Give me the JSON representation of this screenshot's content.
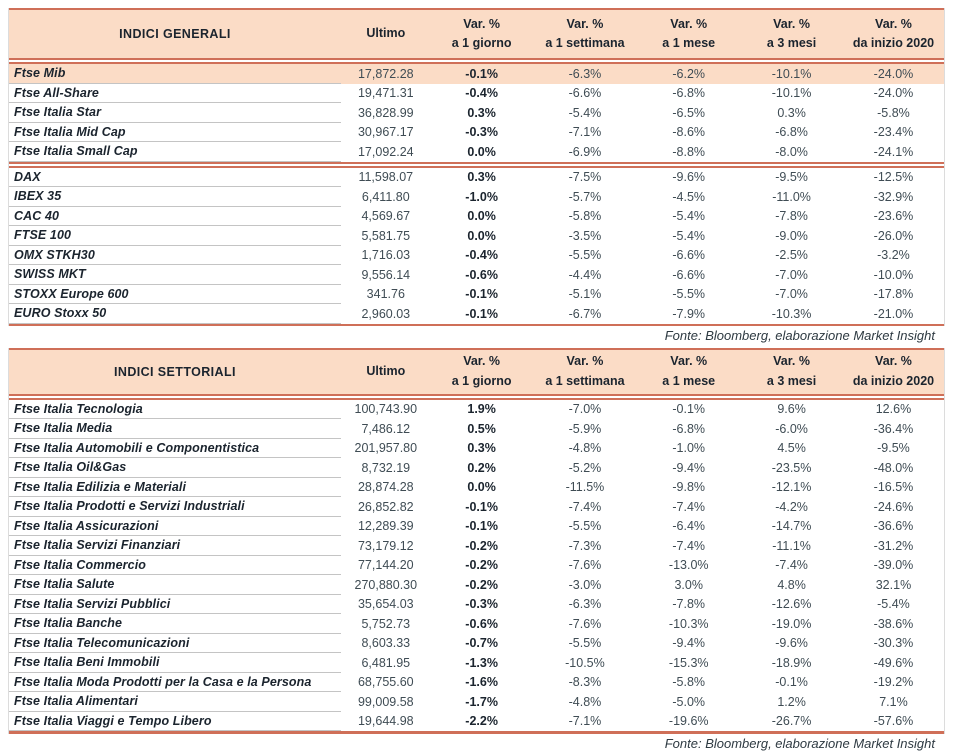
{
  "colors": {
    "accent_line": "#cf6f58",
    "header_bg": "#fbdcc6",
    "highlight_row_bg": "#fbdcc6",
    "row_divider": "#c4c4c4",
    "text_dark": "#1b242e",
    "text_number": "#3f4c54"
  },
  "column_headers": {
    "ultimo": "Ultimo",
    "var_cols": [
      [
        "Var. %",
        "a 1 giorno"
      ],
      [
        "Var. %",
        "a 1 settimana"
      ],
      [
        "Var. %",
        "a 1 mese"
      ],
      [
        "Var. %",
        "a 3 mesi"
      ],
      [
        "Var. %",
        "da inizio 2020"
      ]
    ]
  },
  "source_note": "Fonte: Bloomberg, elaborazione Market Insight",
  "tables": [
    {
      "title": "INDICI GENERALI",
      "groups": [
        [
          {
            "name": "Ftse Mib",
            "ultimo": "17,872.28",
            "vars": [
              "-0.1%",
              "-6.3%",
              "-6.2%",
              "-10.1%",
              "-24.0%"
            ],
            "highlight": true
          },
          {
            "name": "Ftse All-Share",
            "ultimo": "19,471.31",
            "vars": [
              "-0.4%",
              "-6.6%",
              "-6.8%",
              "-10.1%",
              "-24.0%"
            ]
          },
          {
            "name": "Ftse Italia Star",
            "ultimo": "36,828.99",
            "vars": [
              "0.3%",
              "-5.4%",
              "-6.5%",
              "0.3%",
              "-5.8%"
            ]
          },
          {
            "name": "Ftse Italia Mid Cap",
            "ultimo": "30,967.17",
            "vars": [
              "-0.3%",
              "-7.1%",
              "-8.6%",
              "-6.8%",
              "-23.4%"
            ]
          },
          {
            "name": "Ftse Italia Small Cap",
            "ultimo": "17,092.24",
            "vars": [
              "0.0%",
              "-6.9%",
              "-8.8%",
              "-8.0%",
              "-24.1%"
            ]
          }
        ],
        [
          {
            "name": "DAX",
            "ultimo": "11,598.07",
            "vars": [
              "0.3%",
              "-7.5%",
              "-9.6%",
              "-9.5%",
              "-12.5%"
            ]
          },
          {
            "name": "IBEX 35",
            "ultimo": "6,411.80",
            "vars": [
              "-1.0%",
              "-5.7%",
              "-4.5%",
              "-11.0%",
              "-32.9%"
            ]
          },
          {
            "name": "CAC 40",
            "ultimo": "4,569.67",
            "vars": [
              "0.0%",
              "-5.8%",
              "-5.4%",
              "-7.8%",
              "-23.6%"
            ]
          },
          {
            "name": "FTSE 100",
            "ultimo": "5,581.75",
            "vars": [
              "0.0%",
              "-3.5%",
              "-5.4%",
              "-9.0%",
              "-26.0%"
            ]
          },
          {
            "name": "OMX STKH30",
            "ultimo": "1,716.03",
            "vars": [
              "-0.4%",
              "-5.5%",
              "-6.6%",
              "-2.5%",
              "-3.2%"
            ]
          },
          {
            "name": "SWISS MKT",
            "ultimo": "9,556.14",
            "vars": [
              "-0.6%",
              "-4.4%",
              "-6.6%",
              "-7.0%",
              "-10.0%"
            ]
          },
          {
            "name": "STOXX Europe 600",
            "ultimo": "341.76",
            "vars": [
              "-0.1%",
              "-5.1%",
              "-5.5%",
              "-7.0%",
              "-17.8%"
            ]
          },
          {
            "name": "EURO Stoxx 50",
            "ultimo": "2,960.03",
            "vars": [
              "-0.1%",
              "-6.7%",
              "-7.9%",
              "-10.3%",
              "-21.0%"
            ]
          }
        ]
      ]
    },
    {
      "title": "INDICI SETTORIALI",
      "groups": [
        [
          {
            "name": "Ftse Italia Tecnologia",
            "ultimo": "100,743.90",
            "vars": [
              "1.9%",
              "-7.0%",
              "-0.1%",
              "9.6%",
              "12.6%"
            ]
          },
          {
            "name": "Ftse Italia Media",
            "ultimo": "7,486.12",
            "vars": [
              "0.5%",
              "-5.9%",
              "-6.8%",
              "-6.0%",
              "-36.4%"
            ]
          },
          {
            "name": "Ftse Italia Automobili e Componentistica",
            "ultimo": "201,957.80",
            "vars": [
              "0.3%",
              "-4.8%",
              "-1.0%",
              "4.5%",
              "-9.5%"
            ]
          },
          {
            "name": "Ftse Italia Oil&Gas",
            "ultimo": "8,732.19",
            "vars": [
              "0.2%",
              "-5.2%",
              "-9.4%",
              "-23.5%",
              "-48.0%"
            ]
          },
          {
            "name": "Ftse Italia Edilizia e Materiali",
            "ultimo": "28,874.28",
            "vars": [
              "0.0%",
              "-11.5%",
              "-9.8%",
              "-12.1%",
              "-16.5%"
            ]
          },
          {
            "name": "Ftse Italia Prodotti e Servizi Industriali",
            "ultimo": "26,852.82",
            "vars": [
              "-0.1%",
              "-7.4%",
              "-7.4%",
              "-4.2%",
              "-24.6%"
            ]
          },
          {
            "name": "Ftse Italia Assicurazioni",
            "ultimo": "12,289.39",
            "vars": [
              "-0.1%",
              "-5.5%",
              "-6.4%",
              "-14.7%",
              "-36.6%"
            ]
          },
          {
            "name": "Ftse Italia Servizi Finanziari",
            "ultimo": "73,179.12",
            "vars": [
              "-0.2%",
              "-7.3%",
              "-7.4%",
              "-11.1%",
              "-31.2%"
            ]
          },
          {
            "name": "Ftse Italia Commercio",
            "ultimo": "77,144.20",
            "vars": [
              "-0.2%",
              "-7.6%",
              "-13.0%",
              "-7.4%",
              "-39.0%"
            ]
          },
          {
            "name": "Ftse Italia Salute",
            "ultimo": "270,880.30",
            "vars": [
              "-0.2%",
              "-3.0%",
              "3.0%",
              "4.8%",
              "32.1%"
            ]
          },
          {
            "name": "Ftse Italia Servizi Pubblici",
            "ultimo": "35,654.03",
            "vars": [
              "-0.3%",
              "-6.3%",
              "-7.8%",
              "-12.6%",
              "-5.4%"
            ]
          },
          {
            "name": "Ftse Italia Banche",
            "ultimo": "5,752.73",
            "vars": [
              "-0.6%",
              "-7.6%",
              "-10.3%",
              "-19.0%",
              "-38.6%"
            ]
          },
          {
            "name": "Ftse Italia Telecomunicazioni",
            "ultimo": "8,603.33",
            "vars": [
              "-0.7%",
              "-5.5%",
              "-9.4%",
              "-9.6%",
              "-30.3%"
            ]
          },
          {
            "name": "Ftse Italia Beni Immobili",
            "ultimo": "6,481.95",
            "vars": [
              "-1.3%",
              "-10.5%",
              "-15.3%",
              "-18.9%",
              "-49.6%"
            ]
          },
          {
            "name": "Ftse Italia Moda Prodotti per la Casa e la Persona",
            "ultimo": "68,755.60",
            "vars": [
              "-1.6%",
              "-8.3%",
              "-5.8%",
              "-0.1%",
              "-19.2%"
            ]
          },
          {
            "name": "Ftse Italia Alimentari",
            "ultimo": "99,009.58",
            "vars": [
              "-1.7%",
              "-4.8%",
              "-5.0%",
              "1.2%",
              "7.1%"
            ]
          },
          {
            "name": "Ftse Italia Viaggi e Tempo Libero",
            "ultimo": "19,644.98",
            "vars": [
              "-2.2%",
              "-7.1%",
              "-19.6%",
              "-26.7%",
              "-57.6%"
            ]
          }
        ]
      ]
    }
  ]
}
